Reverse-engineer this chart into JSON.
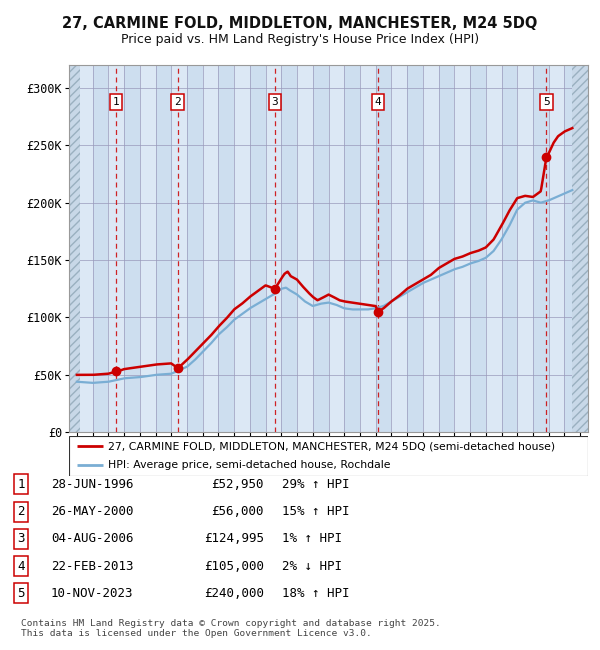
{
  "title": "27, CARMINE FOLD, MIDDLETON, MANCHESTER, M24 5DQ",
  "subtitle": "Price paid vs. HM Land Registry's House Price Index (HPI)",
  "xlim": [
    1993.5,
    2026.5
  ],
  "ylim": [
    0,
    320000
  ],
  "yticks": [
    0,
    50000,
    100000,
    150000,
    200000,
    250000,
    300000
  ],
  "ytick_labels": [
    "£0",
    "£50K",
    "£100K",
    "£150K",
    "£200K",
    "£250K",
    "£300K"
  ],
  "sale_dates": [
    1996.49,
    2000.4,
    2006.59,
    2013.15,
    2023.86
  ],
  "sale_prices": [
    52950,
    56000,
    124995,
    105000,
    240000
  ],
  "sale_labels": [
    "1",
    "2",
    "3",
    "4",
    "5"
  ],
  "vline_color": "#cc0000",
  "marker_color": "#cc0000",
  "hpi_line_color": "#7aaed4",
  "price_line_color": "#cc0000",
  "bg_color": "#dce8f5",
  "legend_label_red": "27, CARMINE FOLD, MIDDLETON, MANCHESTER, M24 5DQ (semi-detached house)",
  "legend_label_blue": "HPI: Average price, semi-detached house, Rochdale",
  "table_data": [
    [
      "1",
      "28-JUN-1996",
      "£52,950",
      "29% ↑ HPI"
    ],
    [
      "2",
      "26-MAY-2000",
      "£56,000",
      "15% ↑ HPI"
    ],
    [
      "3",
      "04-AUG-2006",
      "£124,995",
      "1% ↑ HPI"
    ],
    [
      "4",
      "22-FEB-2013",
      "£105,000",
      "2% ↓ HPI"
    ],
    [
      "5",
      "10-NOV-2023",
      "£240,000",
      "18% ↑ HPI"
    ]
  ],
  "footer_text": "Contains HM Land Registry data © Crown copyright and database right 2025.\nThis data is licensed under the Open Government Licence v3.0.",
  "hpi_key_points": [
    [
      1994.0,
      44000
    ],
    [
      1994.5,
      43500
    ],
    [
      1995.0,
      43000
    ],
    [
      1995.5,
      43500
    ],
    [
      1996.0,
      44000
    ],
    [
      1996.5,
      45500
    ],
    [
      1997.0,
      47000
    ],
    [
      1997.5,
      47500
    ],
    [
      1998.0,
      48000
    ],
    [
      1998.5,
      49000
    ],
    [
      1999.0,
      50000
    ],
    [
      1999.5,
      50500
    ],
    [
      2000.0,
      51000
    ],
    [
      2000.5,
      54000
    ],
    [
      2001.0,
      57000
    ],
    [
      2001.5,
      63000
    ],
    [
      2002.0,
      70000
    ],
    [
      2002.5,
      77000
    ],
    [
      2003.0,
      85000
    ],
    [
      2003.5,
      91000
    ],
    [
      2004.0,
      98000
    ],
    [
      2004.5,
      103000
    ],
    [
      2005.0,
      108000
    ],
    [
      2005.5,
      112000
    ],
    [
      2006.0,
      116000
    ],
    [
      2006.5,
      120000
    ],
    [
      2007.0,
      125000
    ],
    [
      2007.3,
      126000
    ],
    [
      2007.5,
      124000
    ],
    [
      2008.0,
      120000
    ],
    [
      2008.5,
      114000
    ],
    [
      2009.0,
      110000
    ],
    [
      2009.5,
      112000
    ],
    [
      2010.0,
      113000
    ],
    [
      2010.5,
      111000
    ],
    [
      2011.0,
      108000
    ],
    [
      2011.5,
      107000
    ],
    [
      2012.0,
      107000
    ],
    [
      2012.5,
      107000
    ],
    [
      2013.0,
      108000
    ],
    [
      2013.5,
      110000
    ],
    [
      2014.0,
      114000
    ],
    [
      2014.5,
      118000
    ],
    [
      2015.0,
      122000
    ],
    [
      2015.5,
      126000
    ],
    [
      2016.0,
      130000
    ],
    [
      2016.5,
      133000
    ],
    [
      2017.0,
      136000
    ],
    [
      2017.5,
      139000
    ],
    [
      2018.0,
      142000
    ],
    [
      2018.5,
      144000
    ],
    [
      2019.0,
      147000
    ],
    [
      2019.5,
      149000
    ],
    [
      2020.0,
      152000
    ],
    [
      2020.5,
      158000
    ],
    [
      2021.0,
      168000
    ],
    [
      2021.5,
      180000
    ],
    [
      2022.0,
      194000
    ],
    [
      2022.5,
      200000
    ],
    [
      2023.0,
      202000
    ],
    [
      2023.5,
      200000
    ],
    [
      2024.0,
      202000
    ],
    [
      2024.5,
      205000
    ],
    [
      2025.0,
      208000
    ],
    [
      2025.5,
      211000
    ]
  ],
  "price_key_points": [
    [
      1994.0,
      50000
    ],
    [
      1994.5,
      50000
    ],
    [
      1995.0,
      50000
    ],
    [
      1995.5,
      50500
    ],
    [
      1996.0,
      51000
    ],
    [
      1996.49,
      52950
    ],
    [
      1996.8,
      54000
    ],
    [
      1997.0,
      55000
    ],
    [
      1997.5,
      56000
    ],
    [
      1998.0,
      57000
    ],
    [
      1998.5,
      58000
    ],
    [
      1999.0,
      59000
    ],
    [
      1999.5,
      59500
    ],
    [
      2000.0,
      60000
    ],
    [
      2000.4,
      56000
    ],
    [
      2000.6,
      58000
    ],
    [
      2001.0,
      63000
    ],
    [
      2001.5,
      70000
    ],
    [
      2002.0,
      77000
    ],
    [
      2002.5,
      84000
    ],
    [
      2003.0,
      92000
    ],
    [
      2003.5,
      99000
    ],
    [
      2004.0,
      107000
    ],
    [
      2004.5,
      112000
    ],
    [
      2005.0,
      118000
    ],
    [
      2005.5,
      123000
    ],
    [
      2006.0,
      128000
    ],
    [
      2006.59,
      124995
    ],
    [
      2007.0,
      134000
    ],
    [
      2007.2,
      138000
    ],
    [
      2007.4,
      140000
    ],
    [
      2007.6,
      136000
    ],
    [
      2008.0,
      133000
    ],
    [
      2008.3,
      128000
    ],
    [
      2008.7,
      122000
    ],
    [
      2009.0,
      118000
    ],
    [
      2009.3,
      115000
    ],
    [
      2009.6,
      117000
    ],
    [
      2010.0,
      120000
    ],
    [
      2010.3,
      118000
    ],
    [
      2010.7,
      115000
    ],
    [
      2011.0,
      114000
    ],
    [
      2011.5,
      113000
    ],
    [
      2012.0,
      112000
    ],
    [
      2012.5,
      111000
    ],
    [
      2013.0,
      110000
    ],
    [
      2013.15,
      105000
    ],
    [
      2013.5,
      108000
    ],
    [
      2014.0,
      114000
    ],
    [
      2014.5,
      119000
    ],
    [
      2015.0,
      125000
    ],
    [
      2015.5,
      129000
    ],
    [
      2016.0,
      133000
    ],
    [
      2016.5,
      137000
    ],
    [
      2017.0,
      143000
    ],
    [
      2017.5,
      147000
    ],
    [
      2018.0,
      151000
    ],
    [
      2018.5,
      153000
    ],
    [
      2019.0,
      156000
    ],
    [
      2019.5,
      158000
    ],
    [
      2020.0,
      161000
    ],
    [
      2020.5,
      168000
    ],
    [
      2021.0,
      180000
    ],
    [
      2021.5,
      193000
    ],
    [
      2022.0,
      204000
    ],
    [
      2022.5,
      206000
    ],
    [
      2023.0,
      205000
    ],
    [
      2023.5,
      210000
    ],
    [
      2023.86,
      240000
    ],
    [
      2024.0,
      243000
    ],
    [
      2024.3,
      252000
    ],
    [
      2024.6,
      258000
    ],
    [
      2025.0,
      262000
    ],
    [
      2025.5,
      265000
    ]
  ]
}
